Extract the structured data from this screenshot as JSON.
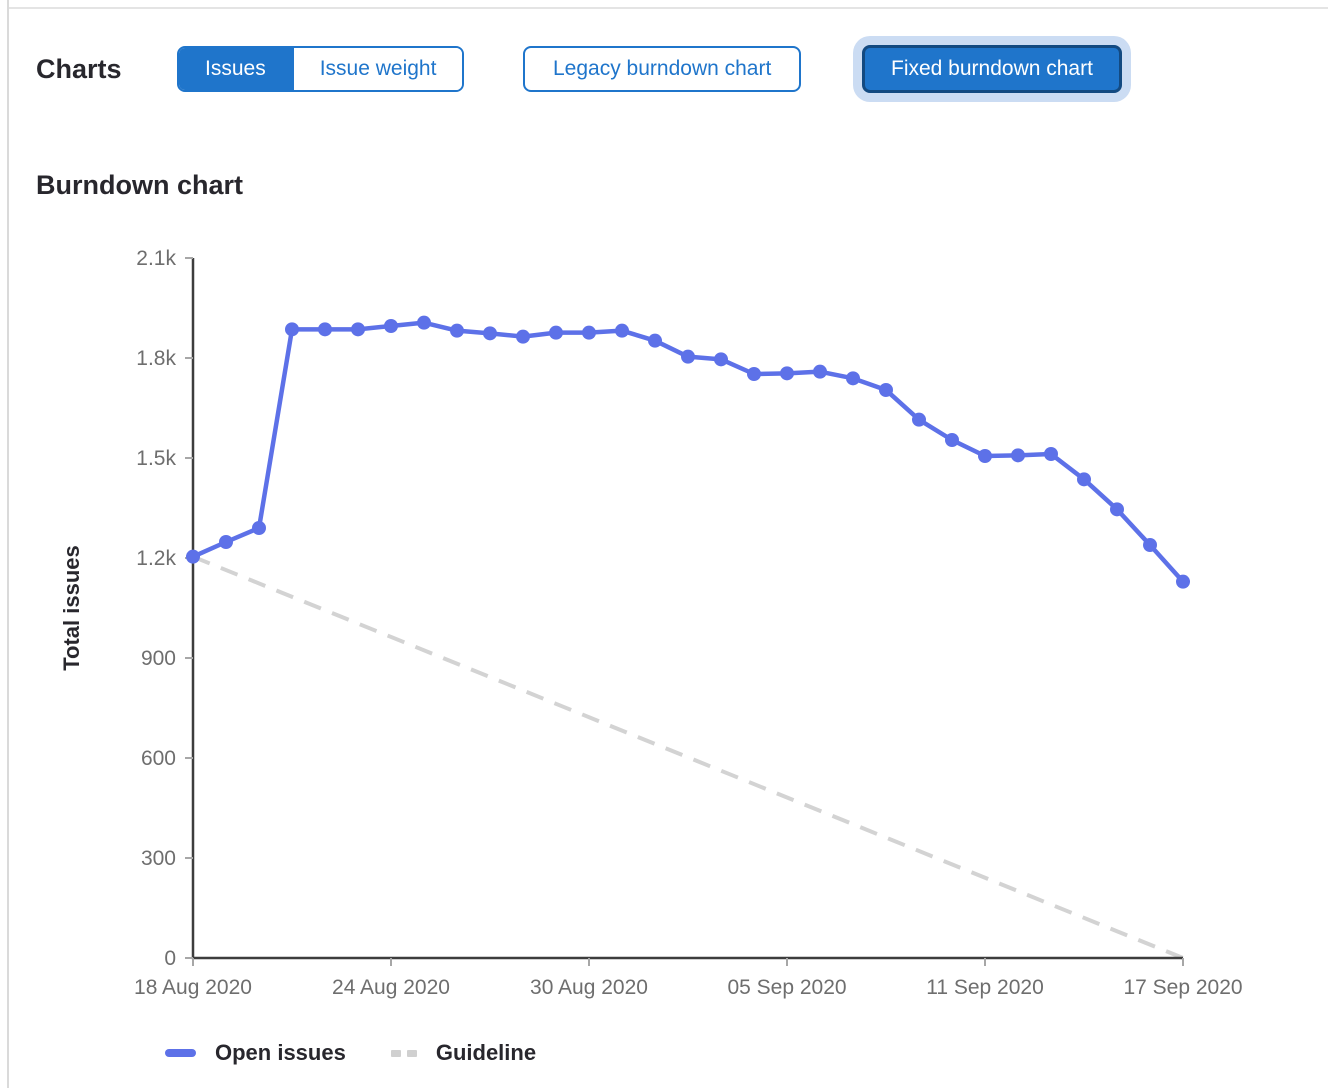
{
  "header": {
    "charts_label": "Charts",
    "view_toggle": {
      "options": [
        "Issues",
        "Issue weight"
      ],
      "selected": "Issues"
    },
    "chart_type_buttons": {
      "options": [
        "Legacy burndown chart",
        "Fixed burndown chart"
      ],
      "selected": "Fixed burndown chart"
    }
  },
  "section": {
    "title": "Burndown chart"
  },
  "colors": {
    "button_blue": "#1f75cb",
    "selected_button_border": "#134a81",
    "focus_ring": "#cbdcf3",
    "open_issues_line": "#5d71e8",
    "guideline_gray": "#d3d3d3",
    "axis_line": "#3d3d3d",
    "tick_text": "#6e6e6e",
    "heading_text": "#28272d"
  },
  "chart_data": {
    "type": "line",
    "title": "Burndown chart",
    "xlabel": "",
    "ylabel": "Total issues",
    "ylim": [
      0,
      2100
    ],
    "x_range_days": 30,
    "grid": false,
    "legend_position": "bottom",
    "y_ticks": {
      "values": [
        0,
        300,
        600,
        900,
        1200,
        1500,
        1800,
        2100
      ],
      "labels": [
        "0",
        "300",
        "600",
        "900",
        "1.2k",
        "1.5k",
        "1.8k",
        "2.1k"
      ]
    },
    "x_ticks": {
      "day_index": [
        0,
        6,
        12,
        18,
        24,
        30
      ],
      "labels": [
        "18 Aug 2020",
        "24 Aug 2020",
        "30 Aug 2020",
        "05 Sep 2020",
        "11 Sep 2020",
        "17 Sep 2020"
      ]
    },
    "series": [
      {
        "name": "Open issues",
        "style": "solid",
        "show_points": true,
        "color": "#5d71e8",
        "dates": [
          "2020-08-18",
          "2020-08-19",
          "2020-08-20",
          "2020-08-21",
          "2020-08-22",
          "2020-08-23",
          "2020-08-24",
          "2020-08-25",
          "2020-08-26",
          "2020-08-27",
          "2020-08-28",
          "2020-08-29",
          "2020-08-30",
          "2020-08-31",
          "2020-09-01",
          "2020-09-02",
          "2020-09-03",
          "2020-09-04",
          "2020-09-05",
          "2020-09-06",
          "2020-09-07",
          "2020-09-08",
          "2020-09-09",
          "2020-09-10",
          "2020-09-11",
          "2020-09-12",
          "2020-09-13",
          "2020-09-14",
          "2020-09-15",
          "2020-09-16",
          "2020-09-17"
        ],
        "values": [
          1204,
          1248,
          1290,
          1886,
          1886,
          1886,
          1896,
          1906,
          1882,
          1874,
          1864,
          1876,
          1876,
          1882,
          1852,
          1804,
          1796,
          1752,
          1754,
          1759,
          1739,
          1704,
          1615,
          1554,
          1506,
          1508,
          1512,
          1436,
          1346,
          1239,
          1129
        ]
      },
      {
        "name": "Guideline",
        "style": "dashed",
        "show_points": false,
        "color": "#d3d3d3",
        "dates": [
          "2020-08-18",
          "2020-09-17"
        ],
        "values": [
          1204,
          0
        ]
      }
    ],
    "legend": [
      "Open issues",
      "Guideline"
    ]
  }
}
